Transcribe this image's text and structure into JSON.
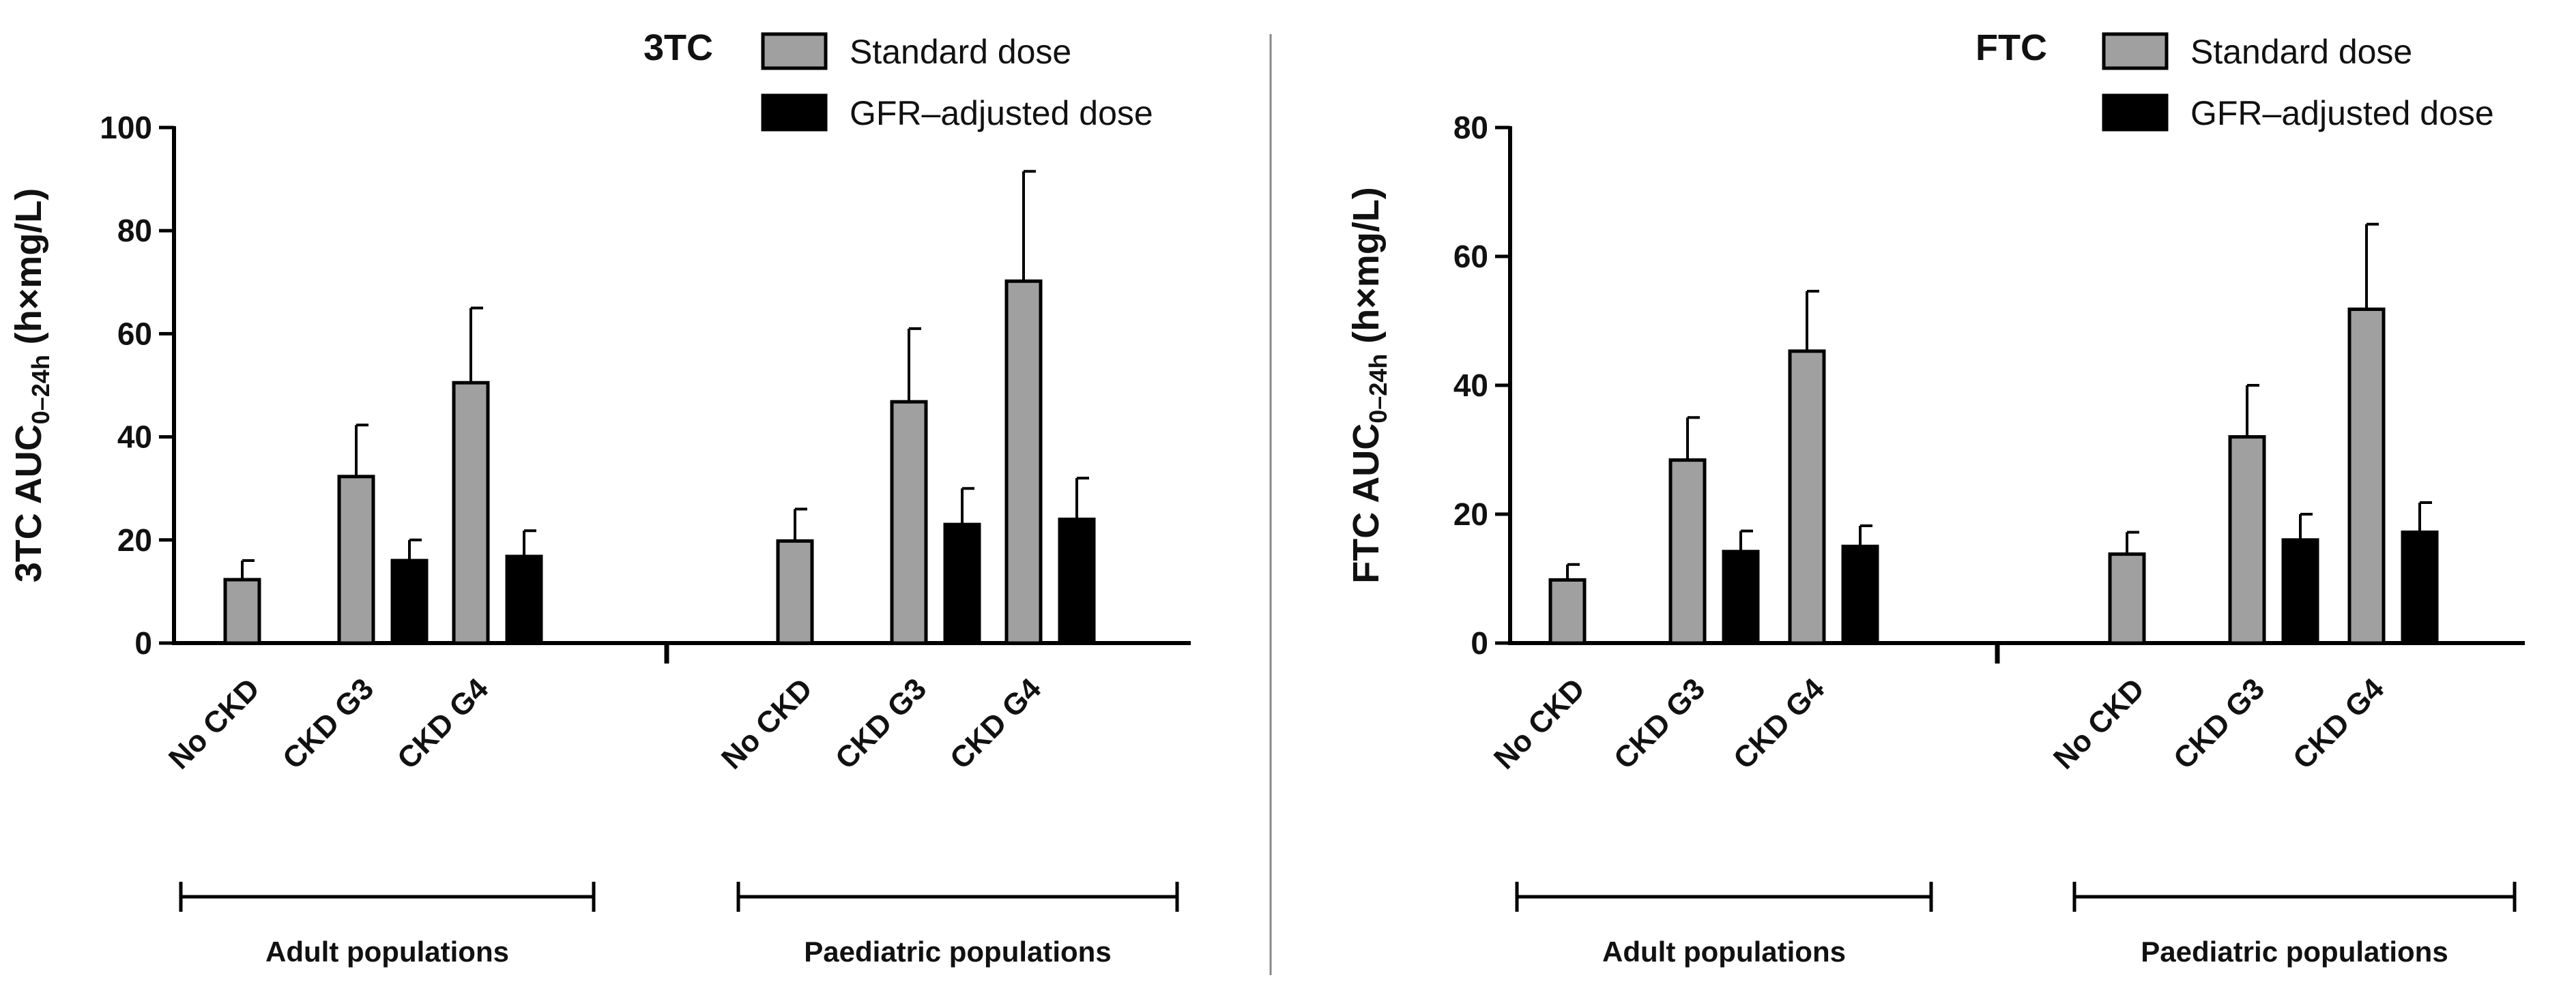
{
  "chart_data": [
    {
      "type": "bar",
      "title": "3TC",
      "ylabel": {
        "prefix": "3TC AUC",
        "subscript": "0–24h",
        "suffix": " (h×mg/L)"
      },
      "ylim": [
        0,
        100
      ],
      "yticks": [
        0,
        20,
        40,
        60,
        80,
        100
      ],
      "categories": [
        "No CKD",
        "CKD G3",
        "CKD G4",
        "No CKD",
        "CKD G3",
        "CKD G4"
      ],
      "groups": [
        {
          "label": "Adult populations",
          "categories": [
            0,
            1,
            2
          ]
        },
        {
          "label": "Paediatric populations",
          "categories": [
            3,
            4,
            5
          ]
        }
      ],
      "series": [
        {
          "name": "Standard dose",
          "color": "#a0a0a0",
          "values": [
            12.3,
            32.3,
            50.5,
            19.8,
            46.8,
            70.2
          ],
          "errors": [
            3.7,
            10.0,
            14.5,
            6.2,
            14.2,
            21.3
          ]
        },
        {
          "name": "GFR–adjusted dose",
          "color": "#000000",
          "values": [
            null,
            16.0,
            16.8,
            null,
            23.0,
            24.0
          ],
          "errors": [
            null,
            4.0,
            5.0,
            null,
            7.0,
            8.0
          ]
        }
      ],
      "legend": "top-right",
      "grid": false
    },
    {
      "type": "bar",
      "title": "FTC",
      "ylabel": {
        "prefix": "FTC AUC",
        "subscript": "0–24h",
        "suffix": " (h×mg/L)"
      },
      "ylim": [
        0,
        80
      ],
      "yticks": [
        0,
        20,
        40,
        60,
        80
      ],
      "categories": [
        "No CKD",
        "CKD G3",
        "CKD G4",
        "No CKD",
        "CKD G3",
        "CKD G4"
      ],
      "groups": [
        {
          "label": "Adult populations",
          "categories": [
            0,
            1,
            2
          ]
        },
        {
          "label": "Paediatric populations",
          "categories": [
            3,
            4,
            5
          ]
        }
      ],
      "series": [
        {
          "name": "Standard dose",
          "color": "#a0a0a0",
          "values": [
            9.8,
            28.4,
            45.3,
            13.8,
            32.0,
            51.8
          ],
          "errors": [
            2.4,
            6.6,
            9.3,
            3.4,
            8.0,
            13.2
          ]
        },
        {
          "name": "GFR–adjusted dose",
          "color": "#000000",
          "values": [
            null,
            14.2,
            15.0,
            null,
            16.0,
            17.2
          ],
          "errors": [
            null,
            3.2,
            3.2,
            null,
            4.0,
            4.6
          ]
        }
      ],
      "legend": "top-right",
      "grid": false
    }
  ]
}
